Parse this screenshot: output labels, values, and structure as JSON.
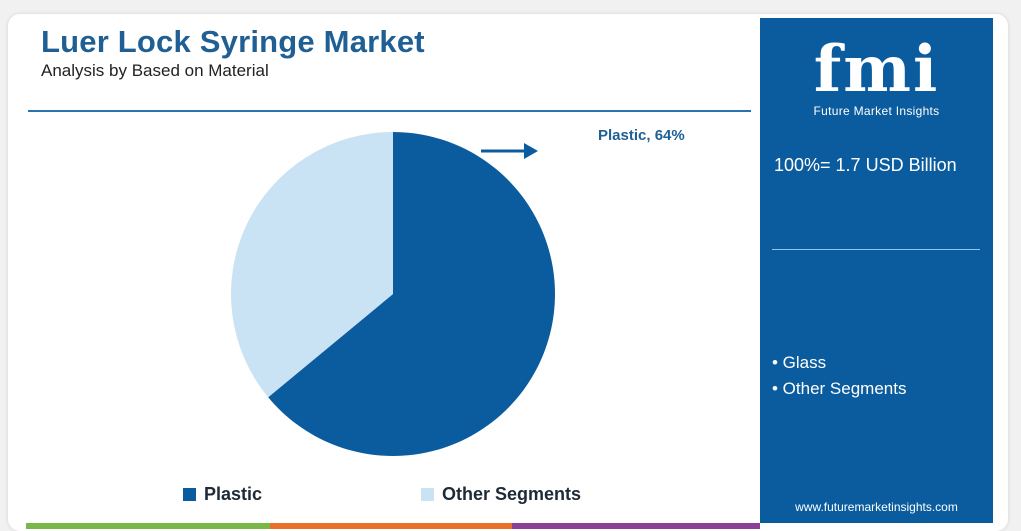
{
  "header": {
    "title": "Luer Lock Syringe Market",
    "subtitle": "Analysis by Based on Material"
  },
  "sidebar": {
    "logo_text": "fmi",
    "logo_subtext": "Future Market Insights",
    "total_label": "100%= 1.7 USD Billion",
    "segments": [
      "• Glass",
      "• Other Segments"
    ],
    "website": "www.futuremarketinsights.com"
  },
  "colors": {
    "plastic": "#0b5c9e",
    "other": "#c9e2f4",
    "brand": "#1f5f93",
    "bar_green": "#7ab648",
    "bar_orange": "#e8702a",
    "bar_purple": "#8b3f97"
  },
  "chart_data": {
    "type": "pie",
    "title": "Luer Lock Syringe Market",
    "subtitle": "Analysis by Based on Material",
    "slices": [
      {
        "name": "Plastic",
        "value": 64,
        "label": "Plastic, 64%"
      },
      {
        "name": "Other Segments",
        "value": 36
      }
    ],
    "legend": [
      "Plastic",
      "Other Segments"
    ],
    "legend_position": "bottom"
  }
}
